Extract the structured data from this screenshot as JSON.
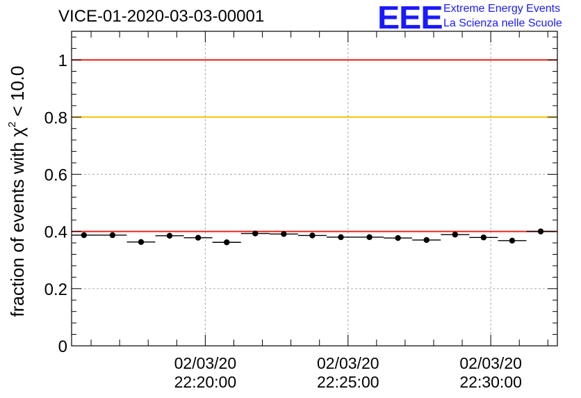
{
  "header": {
    "title": "VICE-01-2020-03-03-00001",
    "logo_mark": "EEE",
    "logo_line1": "Extreme Energy Events",
    "logo_line2": "La Scienza nelle Scuole"
  },
  "colors": {
    "threshold_high": "#e8241c",
    "threshold_mid": "#f7c000",
    "threshold_low": "#e8241c",
    "markers": "#000000",
    "grid": "#aaaaaa",
    "logo": "#1a1aff"
  },
  "chart_data": {
    "type": "scatter",
    "title": "VICE-01-2020-03-03-00001",
    "xlabel": "",
    "ylabel": "fraction of events with",
    "ylabel_symbol": "χ",
    "ylabel_superscript": "2",
    "ylabel_suffix": " < 10.0",
    "ylim": [
      0,
      1.1
    ],
    "yticks": [
      0,
      0.2,
      0.4,
      0.6,
      0.8,
      1
    ],
    "ytick_labels": [
      "0",
      "0.2",
      "0.4",
      "0.6",
      "0.8",
      "1"
    ],
    "x_time_range": [
      "22:15:19",
      "22:32:20"
    ],
    "xticks": [
      {
        "time": "22:20:00",
        "label_date": "02/03/20",
        "label_time": "22:20:00"
      },
      {
        "time": "22:25:00",
        "label_date": "02/03/20",
        "label_time": "22:25:00"
      },
      {
        "time": "22:30:00",
        "label_date": "02/03/20",
        "label_time": "22:30:00"
      }
    ],
    "grid": true,
    "reference_lines": [
      {
        "y": 1.0,
        "color": "#e8241c"
      },
      {
        "y": 0.8,
        "color": "#f7c000"
      },
      {
        "y": 0.4,
        "color": "#e8241c"
      }
    ],
    "series": [
      {
        "bin_width": "00:01:00",
        "points": [
          {
            "x": "22:15:45",
            "y": 0.387
          },
          {
            "x": "22:16:45",
            "y": 0.387
          },
          {
            "x": "22:17:45",
            "y": 0.363
          },
          {
            "x": "22:18:45",
            "y": 0.385
          },
          {
            "x": "22:19:45",
            "y": 0.378
          },
          {
            "x": "22:20:45",
            "y": 0.362
          },
          {
            "x": "22:21:45",
            "y": 0.393
          },
          {
            "x": "22:22:45",
            "y": 0.391
          },
          {
            "x": "22:23:45",
            "y": 0.386
          },
          {
            "x": "22:24:45",
            "y": 0.38
          },
          {
            "x": "22:25:45",
            "y": 0.38
          },
          {
            "x": "22:26:45",
            "y": 0.377
          },
          {
            "x": "22:27:45",
            "y": 0.37
          },
          {
            "x": "22:28:45",
            "y": 0.389
          },
          {
            "x": "22:29:45",
            "y": 0.379
          },
          {
            "x": "22:30:45",
            "y": 0.368
          },
          {
            "x": "22:31:45",
            "y": 0.4
          }
        ]
      }
    ]
  }
}
